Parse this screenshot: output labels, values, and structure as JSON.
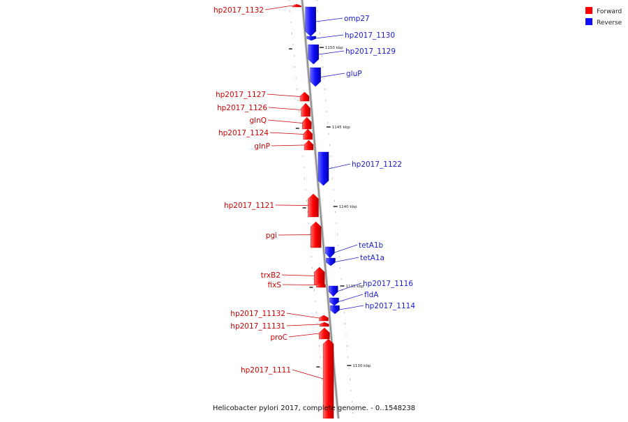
{
  "colors": {
    "forward": "#ff0000",
    "forward_dark": "#b30000",
    "reverse": "#1010ff",
    "reverse_dark": "#0000aa",
    "label_forward": "#cc0000",
    "label_reverse": "#1a1acc",
    "backbone": "#999999"
  },
  "legend": [
    {
      "label": "Forward",
      "color": "#ff0000"
    },
    {
      "label": "Reverse",
      "color": "#1010ff"
    }
  ],
  "caption": "Helicobacter pylori 2017, complete genome. - 0..1548238",
  "scale_marks": [
    {
      "label": "1150 kbp"
    },
    {
      "label": "1145 kbp"
    },
    {
      "label": "1140 kbp"
    },
    {
      "label": "1135 kbp"
    },
    {
      "label": "1130 kbp"
    }
  ],
  "genes": [
    {
      "name": "hp2017_1132",
      "strand": "forward"
    },
    {
      "name": "omp27",
      "strand": "reverse"
    },
    {
      "name": "hp2017_1130",
      "strand": "reverse"
    },
    {
      "name": "hp2017_1129",
      "strand": "reverse"
    },
    {
      "name": "gluP",
      "strand": "reverse"
    },
    {
      "name": "hp2017_1127",
      "strand": "forward"
    },
    {
      "name": "hp2017_1126",
      "strand": "forward"
    },
    {
      "name": "glnQ",
      "strand": "forward"
    },
    {
      "name": "hp2017_1124",
      "strand": "forward"
    },
    {
      "name": "glnP",
      "strand": "forward"
    },
    {
      "name": "hp2017_1122",
      "strand": "reverse"
    },
    {
      "name": "hp2017_1121",
      "strand": "forward"
    },
    {
      "name": "pgi",
      "strand": "forward"
    },
    {
      "name": "tetA1b",
      "strand": "reverse"
    },
    {
      "name": "tetA1a",
      "strand": "reverse"
    },
    {
      "name": "trxB2",
      "strand": "forward"
    },
    {
      "name": "fixS",
      "strand": "forward"
    },
    {
      "name": "hp2017_1116",
      "strand": "reverse"
    },
    {
      "name": "fldA",
      "strand": "reverse"
    },
    {
      "name": "hp2017_1114",
      "strand": "reverse"
    },
    {
      "name": "hp2017_11132",
      "strand": "forward"
    },
    {
      "name": "hp2017_11131",
      "strand": "forward"
    },
    {
      "name": "proC",
      "strand": "forward"
    },
    {
      "name": "hp2017_1111",
      "strand": "forward"
    }
  ]
}
